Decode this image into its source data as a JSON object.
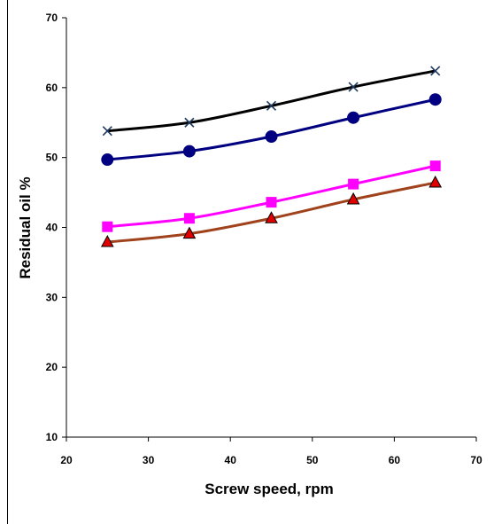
{
  "chart_data": {
    "type": "line",
    "title": "",
    "xlabel": "Screw speed, rpm",
    "ylabel": "Residual oil %",
    "xlim": [
      20,
      70
    ],
    "ylim": [
      10,
      70
    ],
    "x_ticks": [
      20,
      30,
      40,
      50,
      60,
      70
    ],
    "y_ticks": [
      10,
      20,
      30,
      40,
      50,
      60,
      70
    ],
    "grid": false,
    "legend": "none",
    "x": [
      25,
      35,
      45,
      55,
      65
    ],
    "series": [
      {
        "values": [
          53.8,
          55.0,
          57.4,
          60.1,
          62.4
        ],
        "color": "#000000",
        "marker": "x",
        "marker_color": "#1f3a5f"
      },
      {
        "values": [
          49.7,
          50.9,
          53.0,
          55.7,
          58.3
        ],
        "color": "#000080",
        "marker": "circle",
        "marker_color": "#000080"
      },
      {
        "values": [
          40.1,
          41.3,
          43.6,
          46.2,
          48.8
        ],
        "color": "#ff00ff",
        "marker": "square",
        "marker_color": "#ff00ff"
      },
      {
        "values": [
          37.9,
          39.1,
          41.3,
          44.0,
          46.4
        ],
        "color": "#a0421c",
        "marker": "triangle",
        "marker_color": "#e00000"
      }
    ]
  }
}
